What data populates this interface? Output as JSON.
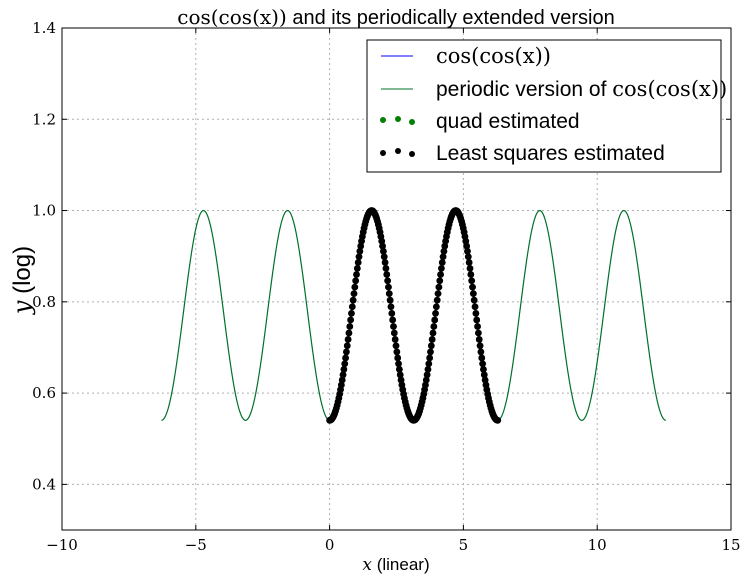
{
  "chart_data": {
    "type": "line",
    "title_math": "cos(cos(x))",
    "title_text": " and its periodically extended version",
    "xlabel_math": "x",
    "xlabel_text": " (linear)",
    "ylabel_math": "y",
    "ylabel_text": " (log)",
    "xlim": [
      -10,
      15
    ],
    "ylim": [
      0.3,
      1.4
    ],
    "xticks": [
      -10,
      -5,
      0,
      5,
      10,
      15
    ],
    "yticks": [
      0.4,
      0.6,
      0.8,
      1.0,
      1.2,
      1.4
    ],
    "xtick_labels": [
      "−10",
      "−5",
      "0",
      "5",
      "10",
      "15"
    ],
    "ytick_labels": [
      "0.4",
      "0.6",
      "0.8",
      "1.0",
      "1.2",
      "1.4"
    ],
    "grid": true,
    "legend_position": "top-right",
    "series": [
      {
        "name_math": "cos(cos(x))",
        "name_text": "",
        "style": "line",
        "color": "#0000ff",
        "function": "cos(cos(x))",
        "x_range": [
          0,
          6.2832
        ],
        "points": [
          [
            0,
            0.5403
          ],
          [
            0.7854,
            0.7602
          ],
          [
            1.5708,
            1.0
          ],
          [
            2.3562,
            0.7602
          ],
          [
            3.1416,
            0.5403
          ],
          [
            3.927,
            0.7602
          ],
          [
            4.7124,
            1.0
          ],
          [
            5.4978,
            0.7602
          ],
          [
            6.2832,
            0.5403
          ]
        ]
      },
      {
        "name_math": "cos(cos(x))",
        "name_text": "periodic version of ",
        "style": "line",
        "color": "#00702a",
        "function": "cos(cos(x)) extended with period 2π",
        "x_range": [
          -6.2832,
          12.5664
        ],
        "points": [
          [
            -6.2832,
            0.5403
          ],
          [
            -4.7124,
            1.0
          ],
          [
            -3.1416,
            0.5403
          ],
          [
            -1.5708,
            1.0
          ],
          [
            0,
            0.5403
          ],
          [
            1.5708,
            1.0
          ],
          [
            3.1416,
            0.5403
          ],
          [
            4.7124,
            1.0
          ],
          [
            6.2832,
            0.5403
          ],
          [
            7.854,
            1.0
          ],
          [
            9.4248,
            0.5403
          ],
          [
            10.9956,
            1.0
          ],
          [
            12.5664,
            0.5403
          ]
        ]
      },
      {
        "name_math": "",
        "name_text": "quad estimated",
        "style": "dots",
        "color": "#008000",
        "function": "Fourier reconstruction (quad)",
        "x_range": [
          0,
          6.2832
        ],
        "points": [
          [
            0,
            0.5403
          ],
          [
            1.5708,
            1.0
          ],
          [
            3.1416,
            0.5403
          ],
          [
            4.7124,
            1.0
          ],
          [
            6.2832,
            0.5403
          ]
        ]
      },
      {
        "name_math": "",
        "name_text": "Least squares estimated",
        "style": "dots",
        "color": "#000000",
        "function": "Fourier reconstruction (least squares)",
        "x_range": [
          0,
          6.2832
        ],
        "points": [
          [
            0,
            0.5403
          ],
          [
            1.5708,
            1.0
          ],
          [
            3.1416,
            0.5403
          ],
          [
            4.7124,
            1.0
          ],
          [
            6.2832,
            0.5403
          ]
        ]
      }
    ]
  }
}
